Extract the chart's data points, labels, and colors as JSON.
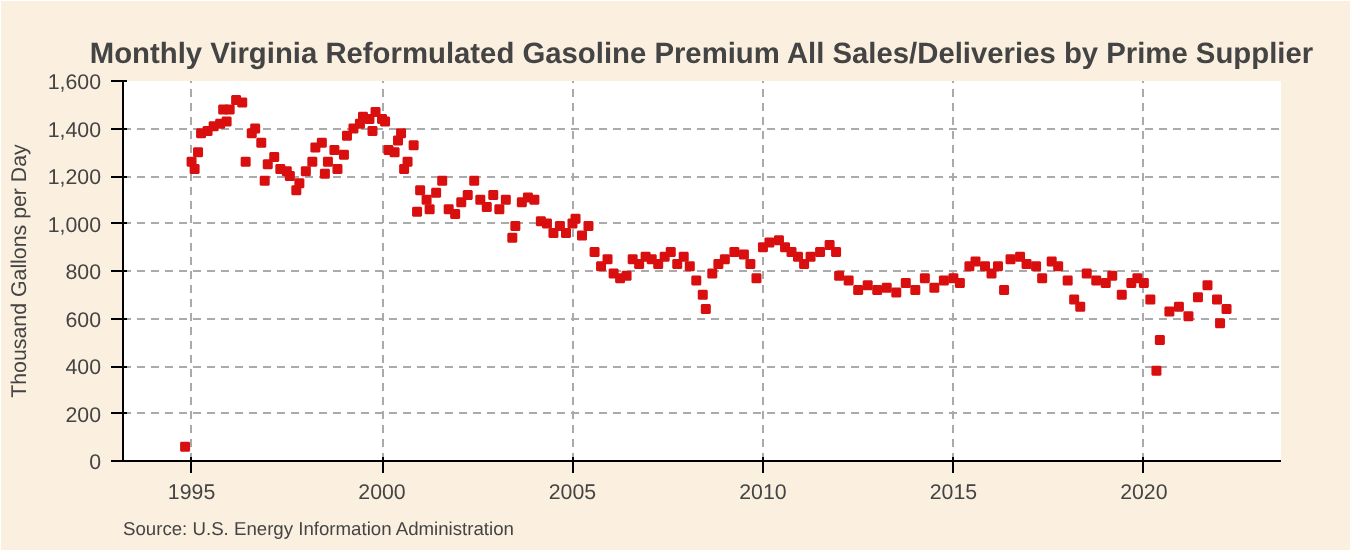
{
  "chart_data": {
    "type": "scatter",
    "title": "Monthly Virginia Reformulated Gasoline Premium All Sales/Deliveries by Prime Supplier",
    "ylabel": "Thousand Gallons per Day",
    "annotations": [
      "Source: U.S. Energy Information Administration"
    ],
    "x": [
      1994.83,
      1995.0,
      1995.08,
      1995.17,
      1995.25,
      1995.42,
      1995.58,
      1995.75,
      1995.83,
      1995.92,
      1996.0,
      1996.17,
      1996.33,
      1996.42,
      1996.58,
      1996.67,
      1996.83,
      1996.92,
      1997.0,
      1997.17,
      1997.33,
      1997.5,
      1997.58,
      1997.75,
      1997.83,
      1998.0,
      1998.17,
      1998.25,
      1998.42,
      1998.5,
      1998.58,
      1998.75,
      1998.83,
      1999.0,
      1999.08,
      1999.25,
      1999.42,
      1999.5,
      1999.67,
      1999.75,
      1999.83,
      2000.0,
      2000.08,
      2000.17,
      2000.33,
      2000.42,
      2000.5,
      2000.58,
      2000.67,
      2000.83,
      2000.92,
      2001.0,
      2001.17,
      2001.25,
      2001.42,
      2001.58,
      2001.75,
      2001.92,
      2002.08,
      2002.25,
      2002.42,
      2002.58,
      2002.75,
      2002.92,
      2003.08,
      2003.25,
      2003.42,
      2003.5,
      2003.67,
      2003.83,
      2004.0,
      2004.17,
      2004.33,
      2004.5,
      2004.67,
      2004.83,
      2005.0,
      2005.08,
      2005.25,
      2005.42,
      2005.58,
      2005.75,
      2005.92,
      2006.08,
      2006.25,
      2006.42,
      2006.58,
      2006.75,
      2006.92,
      2007.08,
      2007.25,
      2007.42,
      2007.58,
      2007.75,
      2007.92,
      2008.08,
      2008.25,
      2008.42,
      2008.5,
      2008.67,
      2008.83,
      2009.0,
      2009.25,
      2009.5,
      2009.67,
      2009.83,
      2010.0,
      2010.17,
      2010.42,
      2010.58,
      2010.75,
      2010.92,
      2011.08,
      2011.25,
      2011.5,
      2011.75,
      2011.92,
      2012.0,
      2012.25,
      2012.5,
      2012.75,
      2013.0,
      2013.25,
      2013.5,
      2013.75,
      2014.0,
      2014.25,
      2014.5,
      2014.75,
      2015.0,
      2015.17,
      2015.42,
      2015.58,
      2015.83,
      2016.0,
      2016.17,
      2016.33,
      2016.5,
      2016.75,
      2016.92,
      2017.17,
      2017.33,
      2017.58,
      2017.75,
      2018.0,
      2018.17,
      2018.33,
      2018.5,
      2018.75,
      2019.0,
      2019.17,
      2019.42,
      2019.67,
      2019.83,
      2020.0,
      2020.17,
      2020.33,
      2020.42,
      2020.67,
      2020.92,
      2021.17,
      2021.42,
      2021.67,
      2021.92,
      2022.0,
      2022.17
    ],
    "series": [
      {
        "color": "#d90f0f",
        "values": [
          60,
          1260,
          1230,
          1300,
          1380,
          1390,
          1410,
          1420,
          1480,
          1430,
          1480,
          1520,
          1510,
          1260,
          1380,
          1400,
          1340,
          1180,
          1250,
          1280,
          1230,
          1220,
          1200,
          1140,
          1170,
          1220,
          1260,
          1320,
          1340,
          1210,
          1260,
          1310,
          1230,
          1290,
          1370,
          1400,
          1420,
          1450,
          1440,
          1390,
          1470,
          1440,
          1430,
          1310,
          1300,
          1350,
          1380,
          1230,
          1260,
          1330,
          1050,
          1140,
          1100,
          1060,
          1130,
          1180,
          1060,
          1040,
          1090,
          1120,
          1180,
          1100,
          1070,
          1120,
          1060,
          1100,
          940,
          990,
          1090,
          1110,
          1100,
          1010,
          1000,
          960,
          990,
          960,
          1000,
          1020,
          950,
          990,
          880,
          820,
          850,
          790,
          770,
          780,
          850,
          830,
          860,
          850,
          830,
          860,
          880,
          830,
          860,
          820,
          760,
          700,
          640,
          790,
          830,
          850,
          880,
          870,
          830,
          770,
          900,
          920,
          930,
          900,
          880,
          860,
          830,
          860,
          880,
          910,
          880,
          780,
          760,
          720,
          740,
          720,
          730,
          710,
          750,
          720,
          770,
          730,
          760,
          770,
          750,
          820,
          840,
          820,
          790,
          820,
          720,
          850,
          860,
          830,
          820,
          770,
          840,
          820,
          760,
          680,
          650,
          790,
          760,
          750,
          780,
          700,
          750,
          770,
          750,
          680,
          380,
          510,
          630,
          650,
          610,
          690,
          740,
          680,
          580,
          640
        ]
      }
    ],
    "xlim": [
      1993.2,
      2023.6
    ],
    "xticks": [
      1995,
      2000,
      2005,
      2010,
      2015,
      2020
    ],
    "ylim": [
      0,
      1600
    ],
    "yticks": [
      {
        "value": 0,
        "label": "0"
      },
      {
        "value": 200,
        "label": "200"
      },
      {
        "value": 400,
        "label": "400"
      },
      {
        "value": 600,
        "label": "600"
      },
      {
        "value": 800,
        "label": "800"
      },
      {
        "value": 1000,
        "label": "1,000"
      },
      {
        "value": 1200,
        "label": "1,200"
      },
      {
        "value": 1400,
        "label": "1,400"
      },
      {
        "value": 1600,
        "label": "1,600"
      }
    ],
    "grid": true,
    "marker": "square"
  }
}
